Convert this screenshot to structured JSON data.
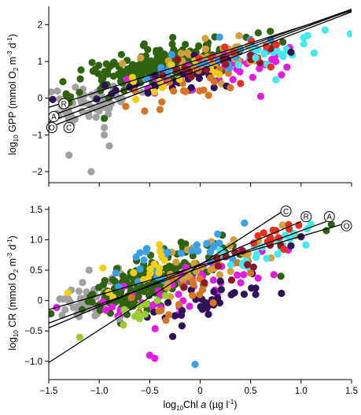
{
  "chart_data": [
    {
      "type": "scatter",
      "panel": "top",
      "ylabel": "log10 GPP (mmol O2 m-3 d-1)",
      "ylabel_parts": {
        "prefix": "log",
        "sub": "10",
        "mid": " GPP (mmol O",
        "sub2": "2",
        "mid2": " m",
        "sup1": "-3",
        "mid3": " d",
        "sup2": "-1",
        "end": ")"
      },
      "xlim": [
        -1.5,
        1.5
      ],
      "ylim": [
        -2.3,
        2.5
      ],
      "yticks": [
        -2,
        -1,
        0,
        1,
        2
      ],
      "ytick_labels": [
        "−2",
        "−1",
        "0",
        "1",
        "2"
      ],
      "xticks": [
        -1.5,
        -1.0,
        -0.5,
        0,
        0.5,
        1.0,
        1.5
      ],
      "regression_lines": [
        {
          "name": "R",
          "x": [
            -1.5,
            1.5
          ],
          "y": [
            -0.25,
            2.38
          ]
        },
        {
          "name": "A",
          "x": [
            -1.5,
            1.5
          ],
          "y": [
            -0.5,
            2.42
          ]
        },
        {
          "name": "O",
          "x": [
            -1.5,
            1.5
          ],
          "y": [
            -0.65,
            2.4
          ]
        },
        {
          "name": "C",
          "x": [
            -1.5,
            1.5
          ],
          "y": [
            -0.8,
            2.35
          ]
        }
      ],
      "line_labels": [
        {
          "text": "R",
          "x": -1.35,
          "y": -0.15
        },
        {
          "text": "A",
          "x": -1.45,
          "y": -0.5
        },
        {
          "text": "O",
          "x": -1.47,
          "y": -0.8
        },
        {
          "text": "C",
          "x": -1.3,
          "y": -0.8
        }
      ],
      "clusters": [
        {
          "color": "#a0a0a0",
          "cx": -1.1,
          "cy": -0.1,
          "sx": 0.22,
          "sy": 0.42,
          "n": 70,
          "seed": 11
        },
        {
          "color": "#2f6310",
          "cx": -0.35,
          "cy": 0.9,
          "sx": 0.38,
          "sy": 0.38,
          "n": 240,
          "seed": 12
        },
        {
          "color": "#e21be0",
          "cx": 0.2,
          "cy": 0.8,
          "sx": 0.4,
          "sy": 0.3,
          "n": 45,
          "seed": 13
        },
        {
          "color": "#d2a03a",
          "cx": 0.25,
          "cy": 1.2,
          "sx": 0.35,
          "sy": 0.35,
          "n": 35,
          "seed": 14
        },
        {
          "color": "#2f1257",
          "cx": -0.2,
          "cy": 0.55,
          "sx": 0.4,
          "sy": 0.3,
          "n": 30,
          "seed": 15
        },
        {
          "color": "#d77524",
          "cx": -0.1,
          "cy": 0.25,
          "sx": 0.3,
          "sy": 0.35,
          "n": 18,
          "seed": 16
        },
        {
          "color": "#3aa0ea",
          "cx": 0.1,
          "cy": 1.05,
          "sx": 0.35,
          "sy": 0.3,
          "n": 20,
          "seed": 17
        },
        {
          "color": "#42e9ee",
          "cx": 0.7,
          "cy": 1.2,
          "sx": 0.3,
          "sy": 0.3,
          "n": 20,
          "seed": 18
        },
        {
          "color": "#f0cd18",
          "cx": -0.4,
          "cy": 0.6,
          "sx": 0.3,
          "sy": 0.3,
          "n": 14,
          "seed": 19
        },
        {
          "color": "#8a1a2a",
          "cx": 0.1,
          "cy": 0.9,
          "sx": 0.35,
          "sy": 0.3,
          "n": 14,
          "seed": 20
        },
        {
          "color": "#e83020",
          "cx": 0.4,
          "cy": 1.3,
          "sx": 0.25,
          "sy": 0.25,
          "n": 8,
          "seed": 21
        }
      ],
      "points": [
        {
          "x": -1.08,
          "y": -2.0,
          "color": "#a0a0a0"
        },
        {
          "x": -1.3,
          "y": -1.55,
          "color": "#a0a0a0"
        },
        {
          "x": -0.95,
          "y": -1.0,
          "color": "#a0a0a0"
        },
        {
          "x": -0.95,
          "y": -0.8,
          "color": "#a0a0a0"
        },
        {
          "x": -0.95,
          "y": -0.55,
          "color": "#2f6310"
        },
        {
          "x": -0.55,
          "y": -0.35,
          "color": "#d77524"
        },
        {
          "x": -0.9,
          "y": -1.3,
          "color": "#a0a0a0"
        },
        {
          "x": 0.55,
          "y": 1.1,
          "color": "#42e9ee"
        },
        {
          "x": 0.8,
          "y": 1.2,
          "color": "#42e9ee"
        },
        {
          "x": 0.75,
          "y": 0.5,
          "color": "#42e9ee"
        },
        {
          "x": 0.6,
          "y": 0.05,
          "color": "#e21be0"
        },
        {
          "x": 0.4,
          "y": 0.4,
          "color": "#e83020"
        },
        {
          "x": 0.7,
          "y": 0.85,
          "color": "#e83020"
        },
        {
          "x": 0.9,
          "y": 1.25,
          "color": "#2f1257"
        },
        {
          "x": 0.7,
          "y": 1.6,
          "color": "#3aa0ea"
        }
      ]
    },
    {
      "type": "scatter",
      "panel": "bottom",
      "xlabel": "log10Chl a (µg l-1)",
      "xlabel_parts": {
        "prefix": "log",
        "sub": "10",
        "mid": "Chl ",
        "italic": "a",
        "mid2": " (µg l",
        "sup": "-1",
        "end": ")"
      },
      "ylabel": "log10 CR (mmol O2 m-3 d-1)",
      "ylabel_parts": {
        "prefix": "log",
        "sub": "10",
        "mid": " CR (mmol O",
        "sub2": "2",
        "mid2": " m",
        "sup1": "-3",
        "mid3": " d",
        "sup2": "-1",
        "end": ")"
      },
      "xlim": [
        -1.5,
        1.5
      ],
      "ylim": [
        -1.3,
        1.55
      ],
      "xticks": [
        -1.5,
        -1.0,
        -0.5,
        0,
        0.5,
        1.0,
        1.5
      ],
      "xtick_labels": [
        "−1.5",
        "−1.0",
        "−0.5",
        "0",
        "0.5",
        "1.0",
        "1.5"
      ],
      "yticks": [
        -1.0,
        -0.5,
        0,
        0.5,
        1.0,
        1.5
      ],
      "ytick_labels": [
        "−1.0",
        "−0.5",
        "0",
        "0.5",
        "1.0",
        "1.5"
      ],
      "regression_lines": [
        {
          "name": "C",
          "x": [
            -1.5,
            0.8
          ],
          "y": [
            -1.02,
            1.45
          ]
        },
        {
          "name": "R",
          "x": [
            -1.5,
            1.0
          ],
          "y": [
            -0.45,
            1.3
          ]
        },
        {
          "name": "A",
          "x": [
            -1.5,
            1.25
          ],
          "y": [
            -0.37,
            1.3
          ]
        },
        {
          "name": "O",
          "x": [
            -1.5,
            1.4
          ],
          "y": [
            -0.15,
            1.25
          ]
        }
      ],
      "line_labels": [
        {
          "text": "C",
          "x": 0.85,
          "y": 1.47
        },
        {
          "text": "R",
          "x": 1.05,
          "y": 1.38
        },
        {
          "text": "A",
          "x": 1.28,
          "y": 1.38
        },
        {
          "text": "O",
          "x": 1.45,
          "y": 1.23
        }
      ],
      "clusters": [
        {
          "color": "#a0a0a0",
          "cx": -1.1,
          "cy": 0.0,
          "sx": 0.18,
          "sy": 0.22,
          "n": 60,
          "seed": 31
        },
        {
          "color": "#2f6310",
          "cx": -0.55,
          "cy": 0.3,
          "sx": 0.35,
          "sy": 0.28,
          "n": 210,
          "seed": 32
        },
        {
          "color": "#e21be0",
          "cx": -0.1,
          "cy": 0.2,
          "sx": 0.45,
          "sy": 0.3,
          "n": 50,
          "seed": 33
        },
        {
          "color": "#d2a03a",
          "cx": 0.1,
          "cy": 0.6,
          "sx": 0.35,
          "sy": 0.3,
          "n": 40,
          "seed": 34
        },
        {
          "color": "#2f1257",
          "cx": 0.1,
          "cy": 0.0,
          "sx": 0.35,
          "sy": 0.25,
          "n": 35,
          "seed": 35
        },
        {
          "color": "#d77524",
          "cx": -0.2,
          "cy": 0.1,
          "sx": 0.3,
          "sy": 0.25,
          "n": 20,
          "seed": 36
        },
        {
          "color": "#3aa0ea",
          "cx": -0.2,
          "cy": 0.7,
          "sx": 0.3,
          "sy": 0.25,
          "n": 30,
          "seed": 37
        },
        {
          "color": "#42e9ee",
          "cx": 0.6,
          "cy": 0.85,
          "sx": 0.25,
          "sy": 0.2,
          "n": 25,
          "seed": 38
        },
        {
          "color": "#f0cd18",
          "cx": -0.6,
          "cy": 0.55,
          "sx": 0.3,
          "sy": 0.25,
          "n": 16,
          "seed": 39
        },
        {
          "color": "#9acd32",
          "cx": -0.7,
          "cy": -0.3,
          "sx": 0.2,
          "sy": 0.2,
          "n": 10,
          "seed": 40
        },
        {
          "color": "#8a1a2a",
          "cx": 0.3,
          "cy": 0.6,
          "sx": 0.3,
          "sy": 0.25,
          "n": 12,
          "seed": 41
        },
        {
          "color": "#e83020",
          "cx": 0.6,
          "cy": 1.0,
          "sx": 0.2,
          "sy": 0.15,
          "n": 12,
          "seed": 42
        }
      ],
      "points": [
        {
          "x": -0.45,
          "y": -0.95,
          "color": "#e21be0"
        },
        {
          "x": -0.5,
          "y": -0.9,
          "color": "#e21be0"
        },
        {
          "x": -0.05,
          "y": -1.05,
          "color": "#3aa0ea"
        },
        {
          "x": -0.75,
          "y": -0.15,
          "color": "#9acd32"
        },
        {
          "x": -0.8,
          "y": -0.3,
          "color": "#a0a0a0"
        },
        {
          "x": -1.1,
          "y": 0.5,
          "color": "#a0a0a0"
        },
        {
          "x": 1.25,
          "y": 1.15,
          "color": "#2f6310"
        },
        {
          "x": 1.3,
          "y": 1.25,
          "color": "#2f6310"
        },
        {
          "x": 1.0,
          "y": 1.05,
          "color": "#2f1257"
        },
        {
          "x": 0.75,
          "y": 1.15,
          "color": "#e83020"
        },
        {
          "x": 0.9,
          "y": 0.9,
          "color": "#2f1257"
        },
        {
          "x": 0.55,
          "y": 0.1,
          "color": "#2f1257"
        },
        {
          "x": 0.8,
          "y": 0.4,
          "color": "#2f6310"
        },
        {
          "x": 0.5,
          "y": 0.45,
          "color": "#d77524"
        }
      ]
    }
  ]
}
